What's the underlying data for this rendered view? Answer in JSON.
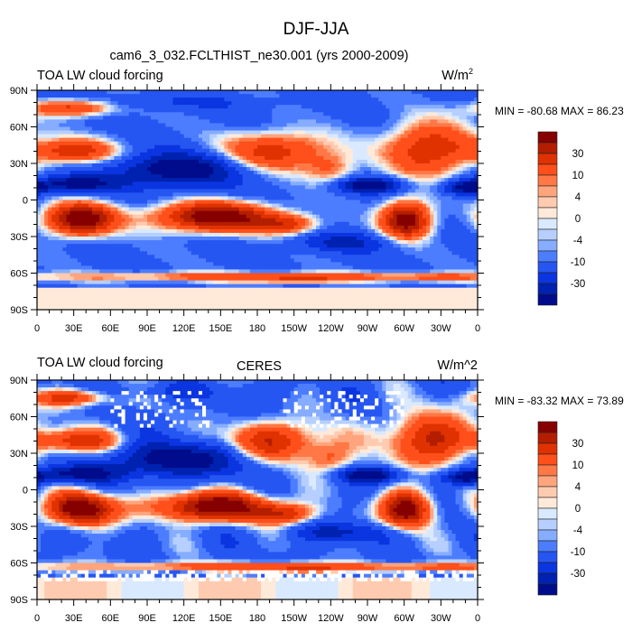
{
  "figure_title": "DJF-JJA",
  "panels": [
    {
      "left_title": "TOA LW cloud forcing",
      "center_title": "cam6_3_032.FCLTHIST_ne30.001 (yrs 2000-2009)",
      "units": "W/m",
      "units_superscript": "2",
      "stats": "MIN = -80.68 MAX =  86.23"
    },
    {
      "left_title": "TOA LW cloud forcing",
      "center_title": "CERES",
      "units": "W/m^2",
      "units_superscript": "",
      "stats": "MIN = -83.32 MAX =  73.89"
    }
  ],
  "lat_labels": [
    "90N",
    "60N",
    "30N",
    "0",
    "30S",
    "60S",
    "90S"
  ],
  "lon_labels": [
    "0",
    "30E",
    "60E",
    "90E",
    "120E",
    "150E",
    "180",
    "150W",
    "120W",
    "90W",
    "60W",
    "30W",
    "0"
  ],
  "colorbar": {
    "labels": [
      "30",
      "10",
      "4",
      "0",
      "-4",
      "-10",
      "-30"
    ],
    "colors": [
      "#870000",
      "#b31e00",
      "#e03200",
      "#ff4f1a",
      "#ff7845",
      "#ffa57e",
      "#ffcbb0",
      "#ffeada",
      "#d9e9ff",
      "#b6cfff",
      "#86adff",
      "#4d7dff",
      "#2656f2",
      "#0a35e0",
      "#0022b0",
      "#000c8c"
    ],
    "missing_color": "#ffffff"
  }
}
